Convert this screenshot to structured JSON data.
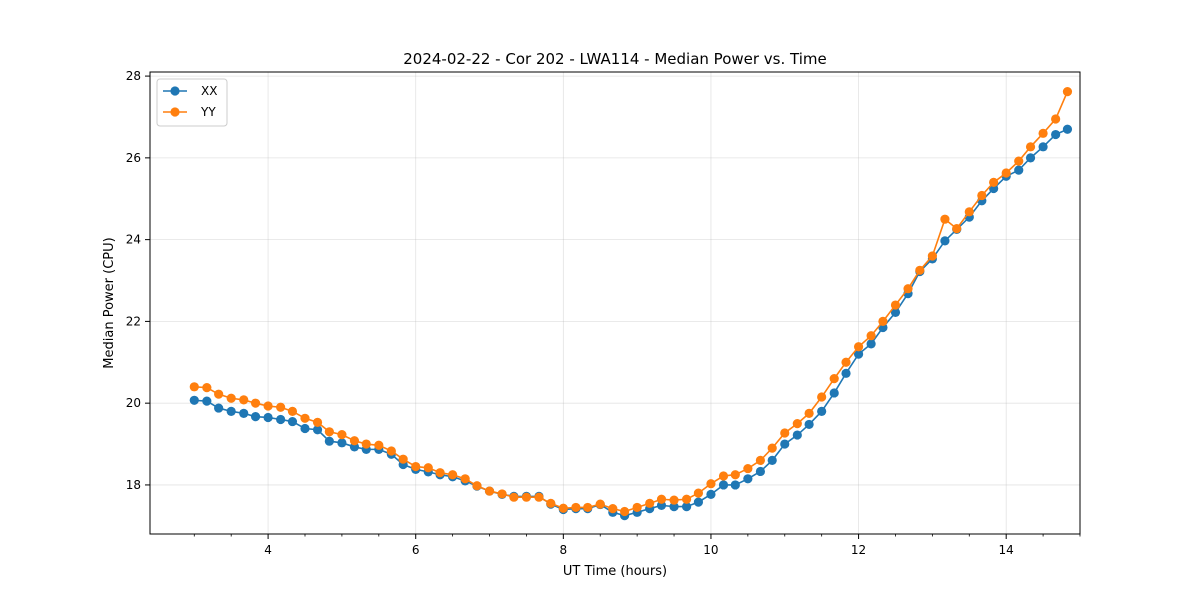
{
  "chart_data": {
    "type": "line",
    "title": "2024-02-22 - Cor 202 - LWA114 - Median Power vs. Time",
    "xlabel": "UT Time (hours)",
    "ylabel": "Median Power (CPU)",
    "xlim": [
      2.4,
      15.0
    ],
    "ylim": [
      16.8,
      28.1
    ],
    "xticks": [
      4,
      6,
      8,
      10,
      12,
      14
    ],
    "yticks": [
      18,
      20,
      22,
      24,
      26,
      28
    ],
    "grid": true,
    "legend": "top-left",
    "x": [
      3.0,
      3.17,
      3.33,
      3.5,
      3.67,
      3.83,
      4.0,
      4.17,
      4.33,
      4.5,
      4.67,
      4.83,
      5.0,
      5.17,
      5.33,
      5.5,
      5.67,
      5.83,
      6.0,
      6.17,
      6.33,
      6.5,
      6.67,
      6.83,
      7.0,
      7.17,
      7.33,
      7.5,
      7.67,
      7.83,
      8.0,
      8.17,
      8.33,
      8.5,
      8.67,
      8.83,
      9.0,
      9.17,
      9.33,
      9.5,
      9.67,
      9.83,
      10.0,
      10.17,
      10.33,
      10.5,
      10.67,
      10.83,
      11.0,
      11.17,
      11.33,
      11.5,
      11.67,
      11.83,
      12.0,
      12.17,
      12.33,
      12.5,
      12.67,
      12.83,
      13.0,
      13.17,
      13.33,
      13.5,
      13.67,
      13.83,
      14.0,
      14.17,
      14.33,
      14.5,
      14.67,
      14.83
    ],
    "series": [
      {
        "name": "XX",
        "color": "#1f77b4",
        "values": [
          20.07,
          20.05,
          19.88,
          19.8,
          19.75,
          19.67,
          19.65,
          19.6,
          19.55,
          19.38,
          19.35,
          19.07,
          19.03,
          18.93,
          18.87,
          18.87,
          18.75,
          18.5,
          18.38,
          18.32,
          18.25,
          18.2,
          18.1,
          17.97,
          17.85,
          17.77,
          17.72,
          17.72,
          17.72,
          17.53,
          17.4,
          17.42,
          17.42,
          17.52,
          17.33,
          17.25,
          17.33,
          17.42,
          17.5,
          17.47,
          17.47,
          17.58,
          17.77,
          18.0,
          18.0,
          18.15,
          18.33,
          18.6,
          19.0,
          19.22,
          19.48,
          19.8,
          20.25,
          20.73,
          21.2,
          21.45,
          21.85,
          22.22,
          22.68,
          23.22,
          23.53,
          23.97,
          24.25,
          24.55,
          24.95,
          25.25,
          25.55,
          25.7,
          26.0,
          26.27,
          26.57,
          26.7
        ]
      },
      {
        "name": "YY",
        "color": "#ff7f0e",
        "values": [
          20.4,
          20.38,
          20.22,
          20.12,
          20.08,
          20.0,
          19.93,
          19.9,
          19.8,
          19.63,
          19.53,
          19.3,
          19.23,
          19.08,
          19.0,
          18.97,
          18.83,
          18.63,
          18.45,
          18.42,
          18.3,
          18.25,
          18.15,
          17.98,
          17.85,
          17.78,
          17.7,
          17.7,
          17.7,
          17.55,
          17.43,
          17.45,
          17.45,
          17.53,
          17.42,
          17.35,
          17.45,
          17.55,
          17.65,
          17.63,
          17.65,
          17.8,
          18.03,
          18.22,
          18.25,
          18.4,
          18.6,
          18.9,
          19.27,
          19.5,
          19.75,
          20.15,
          20.6,
          21.0,
          21.38,
          21.65,
          22.0,
          22.4,
          22.8,
          23.25,
          23.6,
          24.5,
          24.27,
          24.68,
          25.08,
          25.4,
          25.63,
          25.92,
          26.27,
          26.6,
          26.95,
          27.62
        ]
      }
    ]
  }
}
